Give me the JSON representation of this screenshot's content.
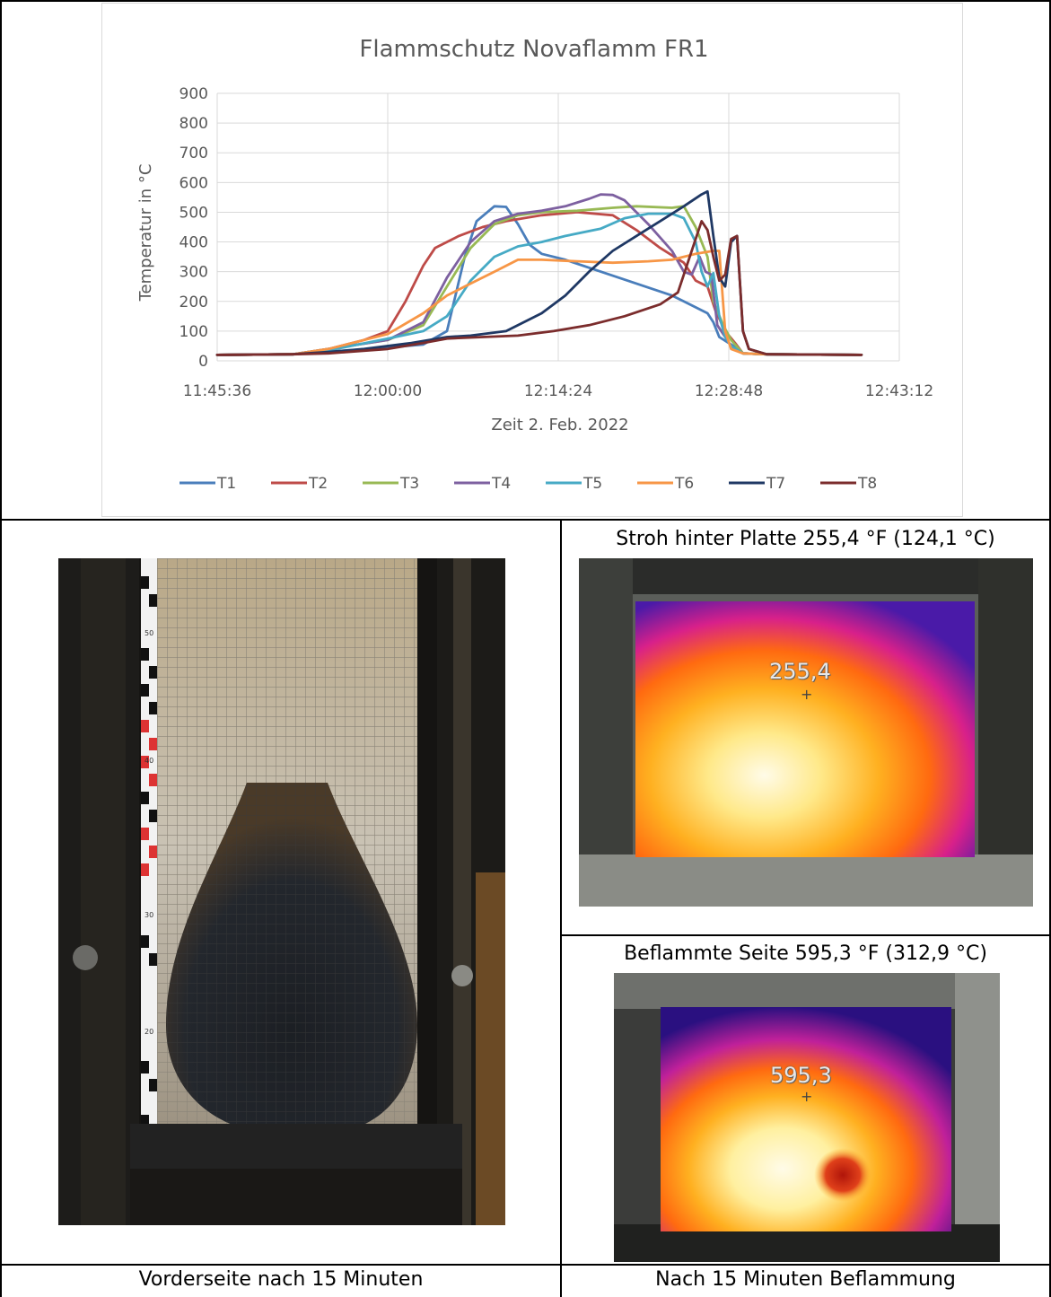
{
  "colors": {
    "T1": "#4a7ebb",
    "T2": "#be4b48",
    "T3": "#98b954",
    "T4": "#7d60a0",
    "T5": "#46aac5",
    "T6": "#f79646",
    "T7": "#1f3864",
    "T8": "#7b2c2c"
  },
  "chart_data": {
    "type": "line",
    "title": "Flammschutz Novaflamm FR1",
    "xlabel": "Zeit 2. Feb. 2022",
    "ylabel": "Temperatur in °C",
    "x_unit": "time of day",
    "xlim": [
      "11:45:36",
      "12:43:12"
    ],
    "x_ticks": [
      "11:45:36",
      "12:00:00",
      "12:14:24",
      "12:28:48",
      "12:43:12"
    ],
    "ylim": [
      0,
      900
    ],
    "y_ticks": [
      "0",
      "100",
      "200",
      "300",
      "400",
      "500",
      "600",
      "700",
      "800",
      "900"
    ],
    "grid": true,
    "legend": "bottom",
    "series": [
      {
        "name": "T1",
        "points": [
          [
            "11:45:36",
            20
          ],
          [
            "11:52:00",
            22
          ],
          [
            "11:55:00",
            30
          ],
          [
            "12:00:00",
            45
          ],
          [
            "12:03:00",
            55
          ],
          [
            "12:05:00",
            100
          ],
          [
            "12:06:30",
            350
          ],
          [
            "12:07:30",
            470
          ],
          [
            "12:09:00",
            520
          ],
          [
            "12:10:00",
            518
          ],
          [
            "12:11:00",
            460
          ],
          [
            "12:12:00",
            390
          ],
          [
            "12:13:00",
            360
          ],
          [
            "12:15:00",
            340
          ],
          [
            "12:18:00",
            300
          ],
          [
            "12:21:00",
            260
          ],
          [
            "12:24:00",
            220
          ],
          [
            "12:26:00",
            180
          ],
          [
            "12:27:00",
            160
          ],
          [
            "12:27:30",
            130
          ],
          [
            "12:28:00",
            80
          ],
          [
            "12:29:00",
            55
          ],
          [
            "12:30:00",
            25
          ],
          [
            "12:32:00",
            22
          ],
          [
            "12:40:00",
            20
          ]
        ]
      },
      {
        "name": "T2",
        "points": [
          [
            "11:45:36",
            20
          ],
          [
            "11:52:00",
            22
          ],
          [
            "11:55:00",
            40
          ],
          [
            "11:58:00",
            70
          ],
          [
            "12:00:00",
            100
          ],
          [
            "12:01:30",
            200
          ],
          [
            "12:03:00",
            320
          ],
          [
            "12:04:00",
            380
          ],
          [
            "12:06:00",
            420
          ],
          [
            "12:08:00",
            450
          ],
          [
            "12:10:00",
            470
          ],
          [
            "12:13:00",
            490
          ],
          [
            "12:16:00",
            500
          ],
          [
            "12:19:00",
            490
          ],
          [
            "12:21:00",
            440
          ],
          [
            "12:23:00",
            380
          ],
          [
            "12:25:00",
            330
          ],
          [
            "12:26:00",
            270
          ],
          [
            "12:27:00",
            250
          ],
          [
            "12:27:40",
            170
          ],
          [
            "12:28:30",
            100
          ],
          [
            "12:29:20",
            60
          ],
          [
            "12:30:00",
            25
          ],
          [
            "12:32:00",
            22
          ],
          [
            "12:40:00",
            20
          ]
        ]
      },
      {
        "name": "T3",
        "points": [
          [
            "11:45:36",
            20
          ],
          [
            "11:52:00",
            22
          ],
          [
            "11:55:00",
            40
          ],
          [
            "12:00:00",
            70
          ],
          [
            "12:03:00",
            120
          ],
          [
            "12:05:00",
            250
          ],
          [
            "12:07:00",
            380
          ],
          [
            "12:09:00",
            460
          ],
          [
            "12:11:00",
            490
          ],
          [
            "12:13:00",
            500
          ],
          [
            "12:16:00",
            505
          ],
          [
            "12:19:00",
            515
          ],
          [
            "12:21:00",
            520
          ],
          [
            "12:24:00",
            515
          ],
          [
            "12:25:00",
            520
          ],
          [
            "12:26:00",
            450
          ],
          [
            "12:27:00",
            350
          ],
          [
            "12:27:30",
            200
          ],
          [
            "12:28:20",
            120
          ],
          [
            "12:29:00",
            70
          ],
          [
            "12:30:00",
            25
          ],
          [
            "12:32:00",
            22
          ],
          [
            "12:40:00",
            20
          ]
        ]
      },
      {
        "name": "T4",
        "points": [
          [
            "11:45:36",
            20
          ],
          [
            "11:52:00",
            22
          ],
          [
            "11:55:00",
            40
          ],
          [
            "12:00:00",
            70
          ],
          [
            "12:03:00",
            130
          ],
          [
            "12:05:00",
            280
          ],
          [
            "12:07:00",
            400
          ],
          [
            "12:09:00",
            470
          ],
          [
            "12:11:00",
            495
          ],
          [
            "12:13:00",
            505
          ],
          [
            "12:15:00",
            520
          ],
          [
            "12:17:00",
            545
          ],
          [
            "12:18:00",
            560
          ],
          [
            "12:19:00",
            558
          ],
          [
            "12:20:00",
            540
          ],
          [
            "12:22:00",
            460
          ],
          [
            "12:24:00",
            370
          ],
          [
            "12:25:00",
            300
          ],
          [
            "12:25:40",
            290
          ],
          [
            "12:26:20",
            350
          ],
          [
            "12:26:50",
            300
          ],
          [
            "12:27:20",
            290
          ],
          [
            "12:27:50",
            120
          ],
          [
            "12:28:30",
            80
          ],
          [
            "12:29:00",
            50
          ],
          [
            "12:30:00",
            25
          ],
          [
            "12:32:00",
            22
          ],
          [
            "12:40:00",
            20
          ]
        ]
      },
      {
        "name": "T5",
        "points": [
          [
            "11:45:36",
            20
          ],
          [
            "11:52:00",
            22
          ],
          [
            "11:55:00",
            35
          ],
          [
            "12:00:00",
            75
          ],
          [
            "12:03:00",
            100
          ],
          [
            "12:05:00",
            150
          ],
          [
            "12:07:00",
            270
          ],
          [
            "12:09:00",
            350
          ],
          [
            "12:11:00",
            385
          ],
          [
            "12:13:00",
            400
          ],
          [
            "12:15:00",
            420
          ],
          [
            "12:18:00",
            445
          ],
          [
            "12:20:00",
            480
          ],
          [
            "12:22:00",
            495
          ],
          [
            "12:24:00",
            495
          ],
          [
            "12:25:00",
            480
          ],
          [
            "12:26:00",
            400
          ],
          [
            "12:26:30",
            300
          ],
          [
            "12:27:00",
            250
          ],
          [
            "12:27:30",
            295
          ],
          [
            "12:28:00",
            150
          ],
          [
            "12:28:30",
            80
          ],
          [
            "12:29:00",
            50
          ],
          [
            "12:30:00",
            25
          ],
          [
            "12:32:00",
            22
          ],
          [
            "12:40:00",
            20
          ]
        ]
      },
      {
        "name": "T6",
        "points": [
          [
            "11:45:36",
            20
          ],
          [
            "11:52:00",
            22
          ],
          [
            "11:55:00",
            40
          ],
          [
            "11:58:00",
            70
          ],
          [
            "12:00:00",
            90
          ],
          [
            "12:03:00",
            160
          ],
          [
            "12:05:00",
            220
          ],
          [
            "12:07:00",
            260
          ],
          [
            "12:09:00",
            300
          ],
          [
            "12:11:00",
            340
          ],
          [
            "12:13:00",
            340
          ],
          [
            "12:16:00",
            335
          ],
          [
            "12:19:00",
            330
          ],
          [
            "12:22:00",
            335
          ],
          [
            "12:24:00",
            340
          ],
          [
            "12:26:00",
            360
          ],
          [
            "12:27:30",
            370
          ],
          [
            "12:28:00",
            370
          ],
          [
            "12:28:30",
            100
          ],
          [
            "12:29:00",
            40
          ],
          [
            "12:30:00",
            25
          ],
          [
            "12:32:00",
            22
          ],
          [
            "12:40:00",
            20
          ]
        ]
      },
      {
        "name": "T7",
        "points": [
          [
            "11:45:36",
            20
          ],
          [
            "11:52:00",
            22
          ],
          [
            "11:55:00",
            30
          ],
          [
            "11:58:00",
            40
          ],
          [
            "12:02:00",
            60
          ],
          [
            "12:05:00",
            80
          ],
          [
            "12:07:00",
            85
          ],
          [
            "12:10:00",
            100
          ],
          [
            "12:13:00",
            160
          ],
          [
            "12:15:00",
            220
          ],
          [
            "12:17:00",
            300
          ],
          [
            "12:19:00",
            370
          ],
          [
            "12:21:00",
            420
          ],
          [
            "12:23:00",
            470
          ],
          [
            "12:25:00",
            520
          ],
          [
            "12:26:30",
            560
          ],
          [
            "12:27:00",
            570
          ],
          [
            "12:27:30",
            420
          ],
          [
            "12:28:00",
            280
          ],
          [
            "12:28:30",
            250
          ],
          [
            "12:29:00",
            400
          ],
          [
            "12:29:30",
            420
          ],
          [
            "12:30:00",
            100
          ],
          [
            "12:30:30",
            40
          ],
          [
            "12:32:00",
            22
          ],
          [
            "12:40:00",
            20
          ]
        ]
      },
      {
        "name": "T8",
        "points": [
          [
            "11:45:36",
            20
          ],
          [
            "11:52:00",
            22
          ],
          [
            "11:55:00",
            25
          ],
          [
            "12:00:00",
            40
          ],
          [
            "12:03:00",
            60
          ],
          [
            "12:05:00",
            75
          ],
          [
            "12:08:00",
            80
          ],
          [
            "12:11:00",
            85
          ],
          [
            "12:14:00",
            100
          ],
          [
            "12:17:00",
            120
          ],
          [
            "12:20:00",
            150
          ],
          [
            "12:23:00",
            190
          ],
          [
            "12:24:30",
            230
          ],
          [
            "12:25:30",
            350
          ],
          [
            "12:26:30",
            470
          ],
          [
            "12:27:00",
            440
          ],
          [
            "12:27:30",
            350
          ],
          [
            "12:28:00",
            270
          ],
          [
            "12:28:30",
            290
          ],
          [
            "12:29:00",
            410
          ],
          [
            "12:29:30",
            420
          ],
          [
            "12:30:00",
            100
          ],
          [
            "12:30:30",
            40
          ],
          [
            "12:32:00",
            22
          ],
          [
            "12:40:00",
            20
          ]
        ]
      }
    ]
  },
  "captions": {
    "photo_left": "Vorderseite nach 15 Minuten",
    "thermo_top_title": "Stroh hinter Platte 255,4 °F (124,1 °C)",
    "thermo_bottom_title": "Beflammte Seite 595,3 °F (312,9 °C)",
    "thermo_bottom_caption": "Nach 15 Minuten Beflammung"
  },
  "thermo_readings": {
    "top": "255,4",
    "bottom": "595,3"
  },
  "ruler_marks": [
    "50",
    "40",
    "30",
    "20"
  ]
}
